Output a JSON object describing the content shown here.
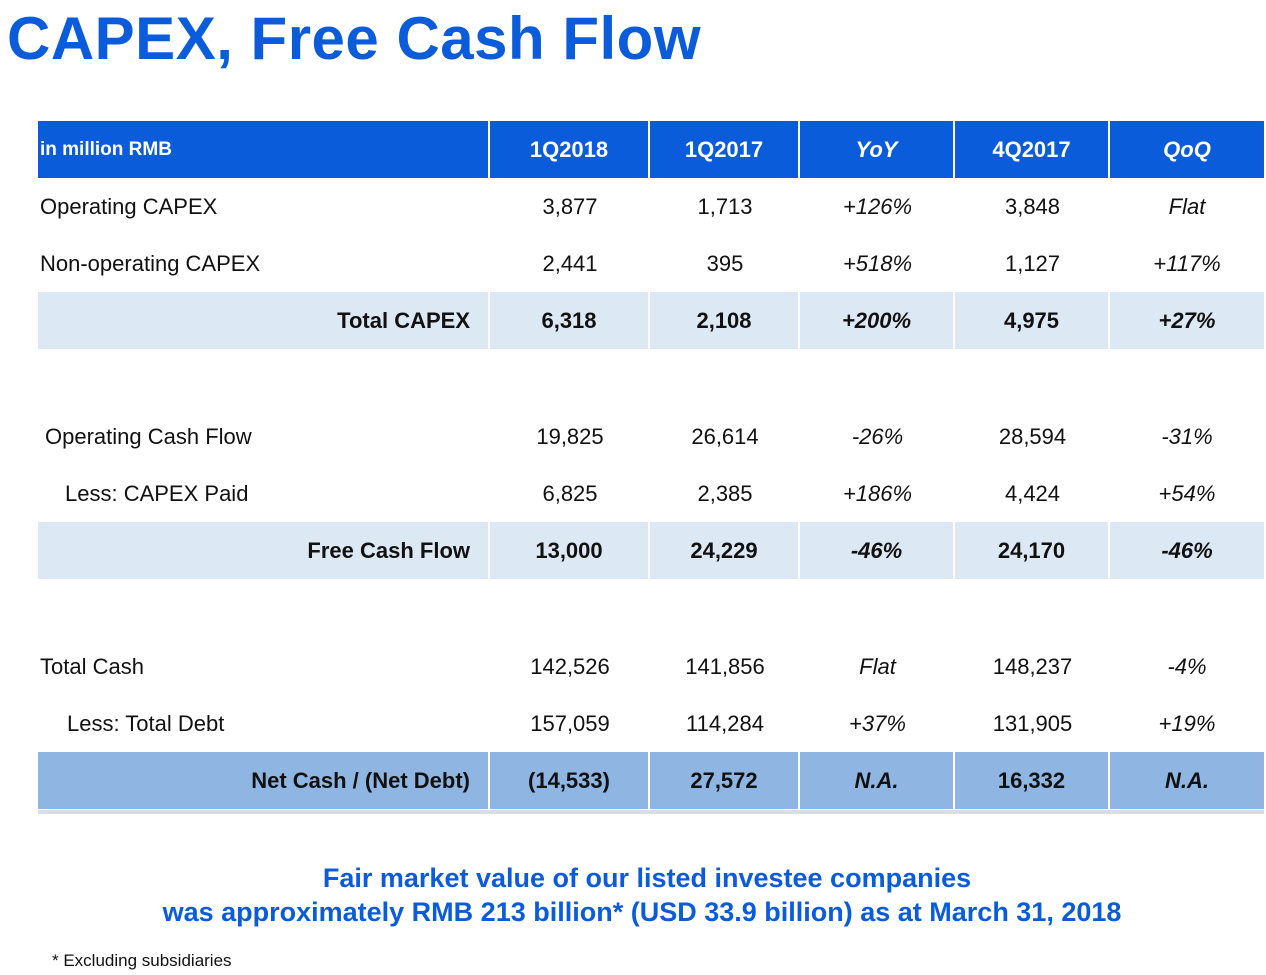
{
  "title": "CAPEX, Free Cash Flow",
  "table": {
    "header": [
      "in million RMB",
      "1Q2018",
      "1Q2017",
      "YoY",
      "4Q2017",
      "QoQ"
    ],
    "rows": [
      [
        "Operating CAPEX",
        "3,877",
        "1,713",
        "+126%",
        "3,848",
        "Flat"
      ],
      [
        "Non-operating CAPEX",
        "2,441",
        "395",
        "+518%",
        "1,127",
        "+117%"
      ],
      [
        "Total CAPEX",
        "6,318",
        "2,108",
        "+200%",
        "4,975",
        "+27%"
      ],
      [
        "Operating Cash Flow",
        "19,825",
        "26,614",
        "-26%",
        "28,594",
        "-31%"
      ],
      [
        "Less: CAPEX Paid",
        "6,825",
        "2,385",
        "+186%",
        "4,424",
        "+54%"
      ],
      [
        "Free Cash Flow",
        "13,000",
        "24,229",
        "-46%",
        "24,170",
        "-46%"
      ],
      [
        "Total Cash",
        "142,526",
        "141,856",
        "Flat",
        "148,237",
        "-4%"
      ],
      [
        "Less: Total Debt",
        "157,059",
        "114,284",
        "+37%",
        "131,905",
        "+19%"
      ],
      [
        "Net Cash / (Net Debt)",
        "(14,533)",
        "27,572",
        "N.A.",
        "16,332",
        "N.A."
      ]
    ]
  },
  "note": {
    "line1": "Fair market value of our listed investee companies",
    "line2": "was approximately RMB 213 billion* (USD 33.9 billion) as at March 31, 2018"
  },
  "footnote": "* Excluding subsidiaries"
}
